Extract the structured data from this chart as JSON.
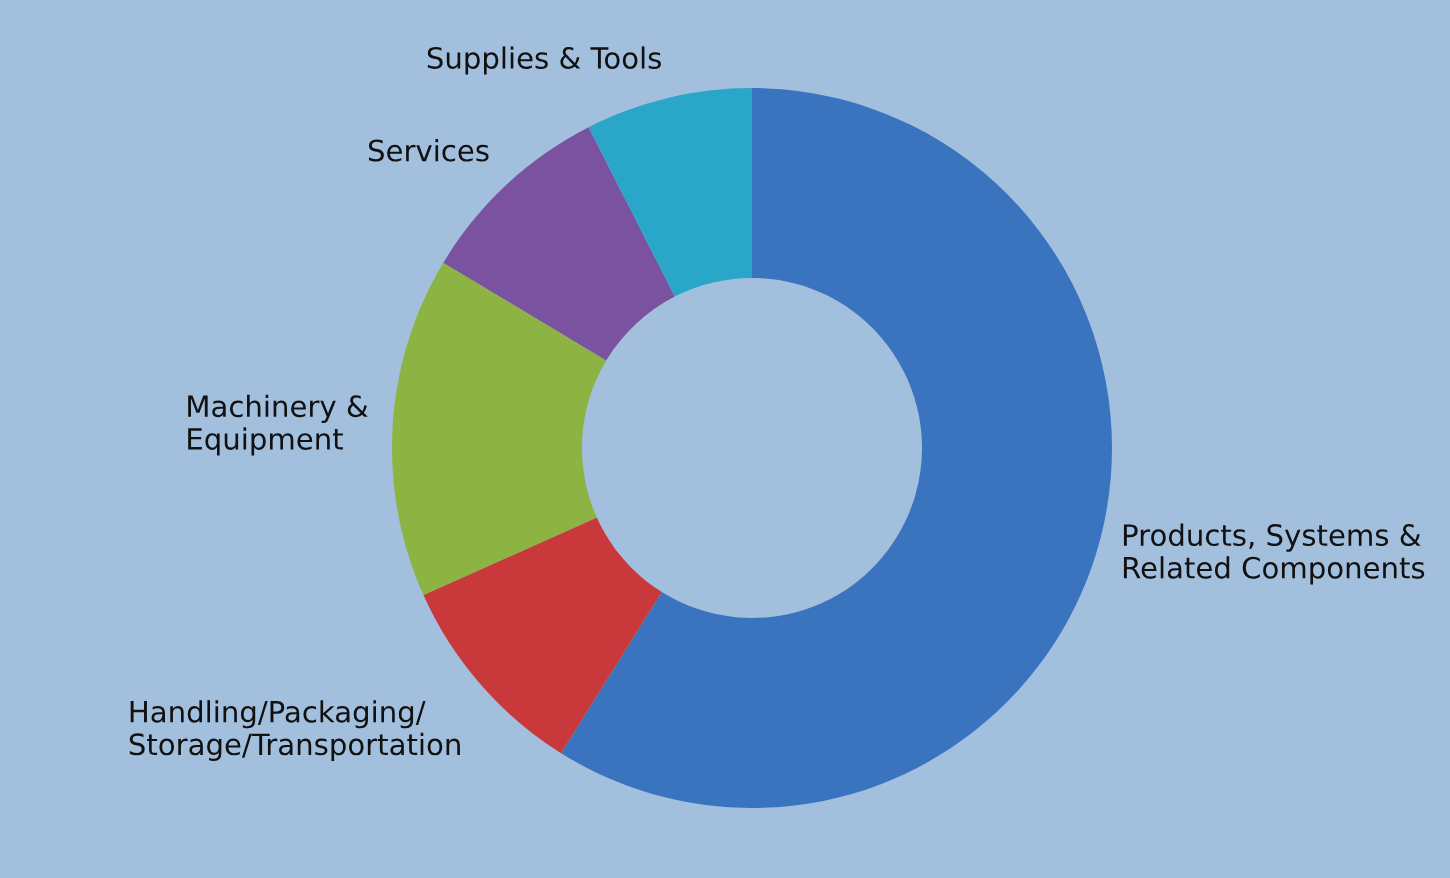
{
  "chart_data": {
    "type": "donut",
    "categories": [
      "Products, Systems &\nRelated Components",
      "Handling/Packaging/\nStorage/Transportation",
      "Machinery &\nEquipment",
      "Services",
      "Supplies & Tools"
    ],
    "values": [
      58.9,
      9.4,
      15.3,
      8.9,
      7.5
    ],
    "colors": [
      "#3a74bf",
      "#c9383a",
      "#8db443",
      "#7a52a0",
      "#2aa6c9"
    ],
    "legend": false
  }
}
